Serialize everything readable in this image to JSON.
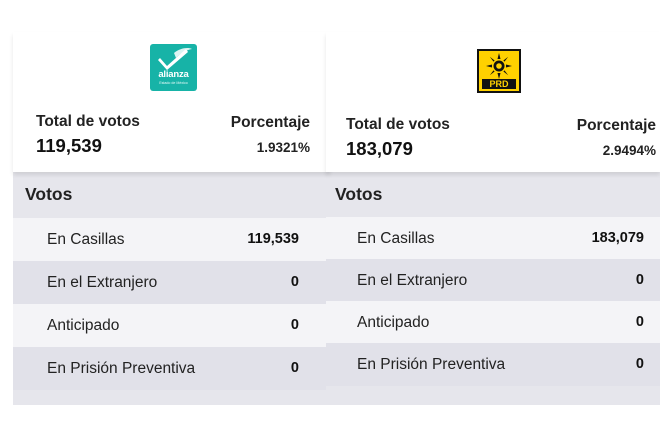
{
  "panels": [
    {
      "party_logo": {
        "icon": "alianza-logo",
        "brand_color": "#17b3a7",
        "text": "alianza",
        "subtext": "Estado de México"
      },
      "total_label": "Total de votos",
      "total_value": "119,539",
      "percent_label": "Porcentaje",
      "percent_value": "1.9321%",
      "votos_title": "Votos",
      "rows": [
        {
          "label": "En Casillas",
          "value": "119,539"
        },
        {
          "label": "En el Extranjero",
          "value": "0"
        },
        {
          "label": "Anticipado",
          "value": "0"
        },
        {
          "label": "En Prisión Preventiva",
          "value": "0"
        }
      ]
    },
    {
      "party_logo": {
        "icon": "prd-sun-logo",
        "brand_color": "#ffd100",
        "text": "PRD"
      },
      "total_label": "Total de votos",
      "total_value": "183,079",
      "percent_label": "Porcentaje",
      "percent_value": "2.9494%",
      "votos_title": "Votos",
      "rows": [
        {
          "label": "En Casillas",
          "value": "183,079"
        },
        {
          "label": "En el Extranjero",
          "value": "0"
        },
        {
          "label": "Anticipado",
          "value": "0"
        },
        {
          "label": "En Prisión Preventiva",
          "value": "0"
        }
      ]
    }
  ]
}
